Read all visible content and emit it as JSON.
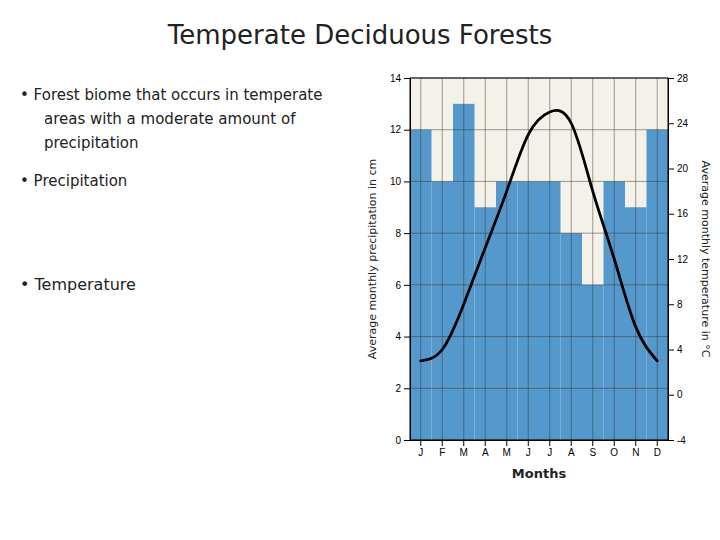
{
  "chart_data": {
    "type": "bar",
    "title": "Temperate Deciduous Forests",
    "annotations": [
      "•  Forest biome that occurs in temperate\nareas with a moderate amount of\nprecipitation",
      "•  Precipitation",
      "•  Temperature"
    ],
    "categories": [
      "J",
      "F",
      "M",
      "A",
      "M",
      "J",
      "J",
      "A",
      "S",
      "O",
      "N",
      "D"
    ],
    "x_label": "Months",
    "y_label": "Average monthly precipitation in cm",
    "y2_label": "Average monthly temperature in °C",
    "series": [
      {
        "type": "bar",
        "color": "#5599cc",
        "values": [
          12,
          10,
          13,
          9,
          10,
          10,
          10,
          8,
          6,
          10,
          9,
          12
        ]
      },
      {
        "type": "line",
        "color": "#000000",
        "axis": "y2",
        "values": [
          3,
          4,
          8,
          13,
          18,
          23,
          25,
          24,
          18,
          12,
          6,
          3
        ]
      }
    ],
    "ylim": [
      0,
      14
    ],
    "yticks": [
      0,
      2,
      4,
      6,
      8,
      10,
      12,
      14
    ],
    "y2lim": [
      -4,
      28
    ],
    "y2ticks": [
      28,
      24,
      20,
      16,
      12,
      8,
      4,
      0,
      -4
    ],
    "grid": true
  }
}
